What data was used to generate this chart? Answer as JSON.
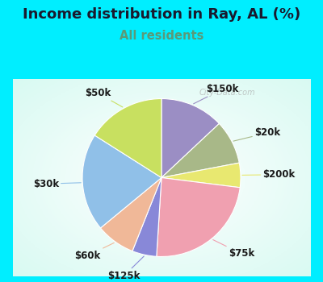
{
  "title": "Income distribution in Ray, AL (%)",
  "subtitle": "All residents",
  "title_color": "#1a1a2e",
  "subtitle_color": "#5a9a78",
  "background_cyan": "#00eeff",
  "watermark": "City-Data.com",
  "segments": [
    {
      "label": "$150k",
      "value": 13,
      "color": "#9b8ec4"
    },
    {
      "label": "$20k",
      "value": 9,
      "color": "#a8b888"
    },
    {
      "label": "$200k",
      "value": 5,
      "color": "#e8e870"
    },
    {
      "label": "$75k",
      "value": 24,
      "color": "#f0a0b0"
    },
    {
      "label": "$125k",
      "value": 5,
      "color": "#8888d8"
    },
    {
      "label": "$60k",
      "value": 8,
      "color": "#f0b898"
    },
    {
      "label": "$30k",
      "value": 20,
      "color": "#90c0e8"
    },
    {
      "label": "$50k",
      "value": 16,
      "color": "#c8e060"
    }
  ],
  "label_fontsize": 8.5,
  "title_fontsize": 13,
  "subtitle_fontsize": 10.5
}
